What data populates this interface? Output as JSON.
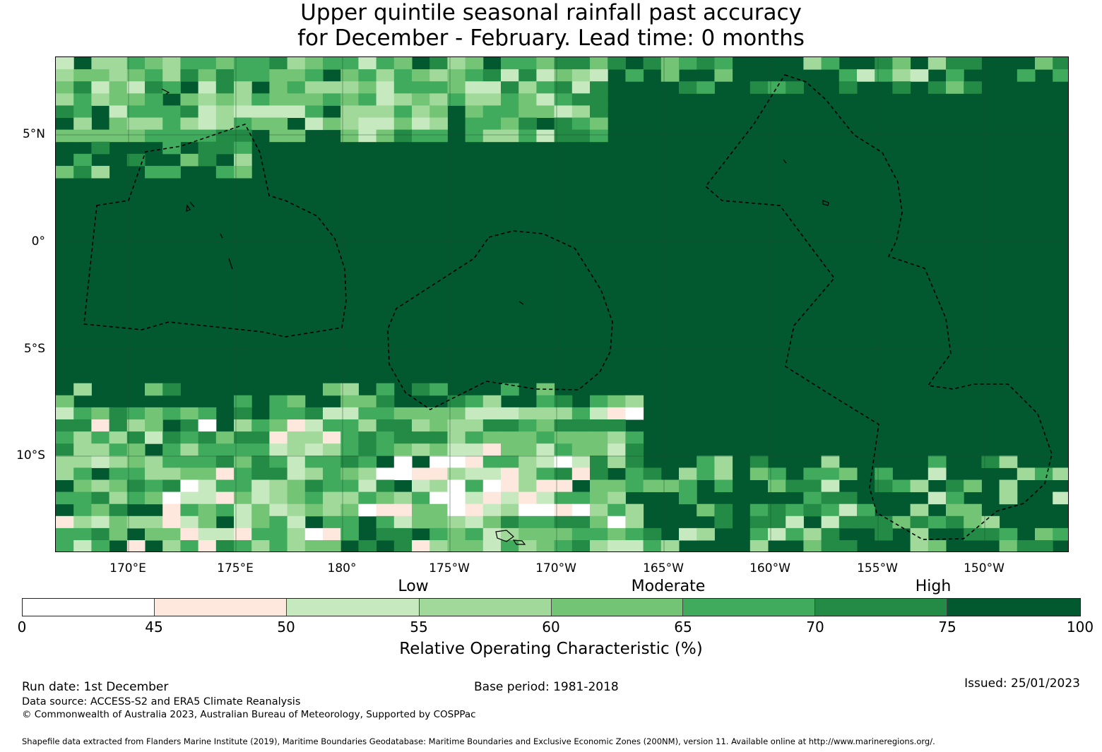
{
  "title": {
    "line1": "Upper quintile seasonal rainfall past accuracy",
    "line2": "for December - February. Lead time: 0 months"
  },
  "map": {
    "lon_ticks": [
      "170°E",
      "175°E",
      "180°",
      "175°W",
      "170°W",
      "165°W",
      "160°W",
      "155°W",
      "150°W"
    ],
    "lat_ticks": [
      "5°N",
      "0°",
      "5°S",
      "10°S"
    ],
    "background_color": "#02582f",
    "boundary_style": "dashed"
  },
  "colorbar": {
    "bands": [
      "Low",
      "Moderate",
      "High"
    ],
    "ticks": [
      "0",
      "45",
      "50",
      "55",
      "60",
      "65",
      "70",
      "75",
      "100"
    ],
    "colors": [
      "#ffffff",
      "#fee8de",
      "#c7e9c0",
      "#a1d99b",
      "#74c476",
      "#41ab5d",
      "#238b45",
      "#02582f"
    ],
    "label": "Relative Operating Characteristic (%)"
  },
  "footer": {
    "run_date": "Run date: 1st December",
    "base_period": "Base period: 1981-2018",
    "issued": "Issued: 25/01/2023",
    "data_source": "Data source: ACCESS-S2 and ERA5 Climate Reanalysis",
    "copyright": "© Commonwealth of Australia 2023, Australian Bureau of Meteorology, Supported by COSPPac",
    "shapefile": "Shapefile data extracted from Flanders Marine Institute (2019), Maritime Boundaries Geodatabase: Maritime Boundaries and Exclusive Economic Zones (200NM), version 11. Available online at http://www.marineregions.org/."
  }
}
